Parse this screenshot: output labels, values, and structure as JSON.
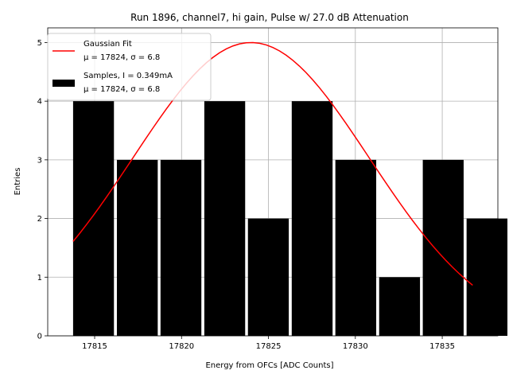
{
  "chart_data": {
    "type": "bar",
    "title": "Run 1896, channel7, hi gain, Pulse w/ 27.0 dB Attenuation",
    "xlabel": "Energy from OFCs [ADC Counts]",
    "ylabel": "Entries",
    "xlim": [
      17812.3,
      17838.2
    ],
    "ylim": [
      0,
      5.25
    ],
    "xticks": [
      17815,
      17820,
      17825,
      17830,
      17835
    ],
    "yticks": [
      0,
      1,
      2,
      3,
      4,
      5
    ],
    "grid": true,
    "legend_position": "top-left",
    "bar_color": "#000000",
    "fit_color": "#ff0000",
    "histogram": {
      "name": "Samples, I = 0.349mA",
      "stats": "μ = 17824, σ = 6.8",
      "bin_edges": [
        17813.76,
        17816.28,
        17818.79,
        17821.31,
        17823.82,
        17826.34,
        17828.85,
        17831.37,
        17833.88,
        17836.4
      ],
      "bar_width": 2.35,
      "counts": [
        4,
        3,
        3,
        4,
        2,
        4,
        3,
        1,
        3,
        2
      ]
    },
    "fit": {
      "name": "Gaussian Fit",
      "stats": "μ = 17824, σ = 6.8",
      "amplitude": 5.0,
      "mean": 17824.0,
      "sigma": 6.8,
      "x_range": [
        17813.76,
        17836.75
      ]
    }
  }
}
